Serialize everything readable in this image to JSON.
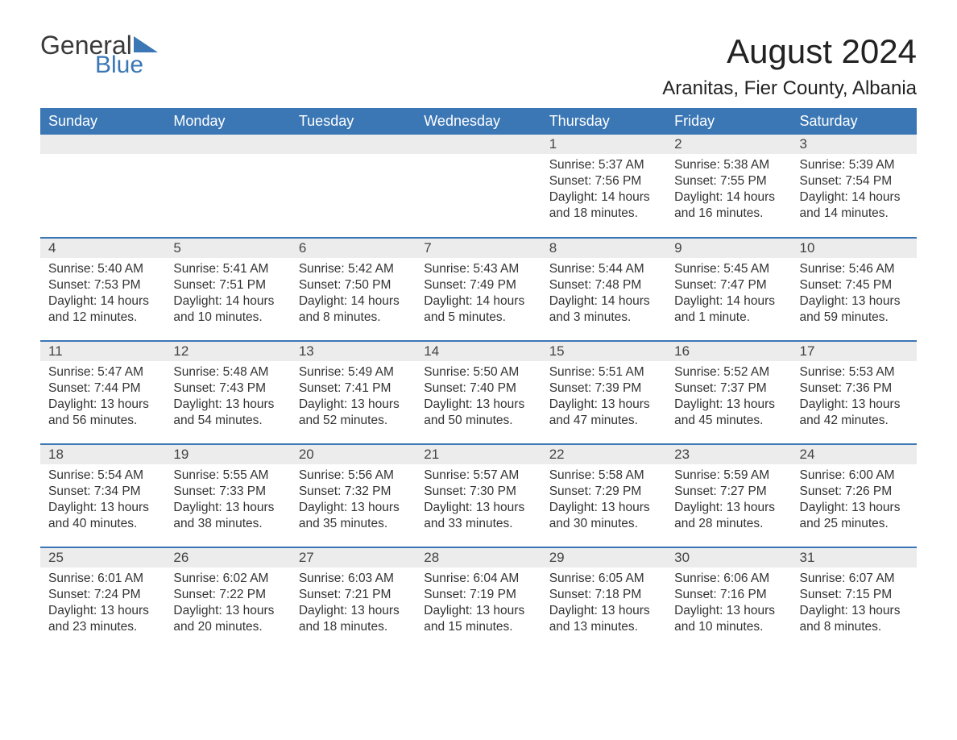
{
  "logo": {
    "text1": "General",
    "text2": "Blue",
    "tri_color": "#3b77b5"
  },
  "title": "August 2024",
  "location": "Aranitas, Fier County, Albania",
  "colors": {
    "header_bg": "#3b77b5",
    "header_text": "#ffffff",
    "daynum_bg": "#ececec",
    "border": "#3b77b5",
    "body_text": "#333333",
    "background": "#ffffff"
  },
  "typography": {
    "title_fontsize": 42,
    "location_fontsize": 24,
    "header_fontsize": 18,
    "daynum_fontsize": 17,
    "data_fontsize": 15.5
  },
  "weekdays": [
    "Sunday",
    "Monday",
    "Tuesday",
    "Wednesday",
    "Thursday",
    "Friday",
    "Saturday"
  ],
  "weeks": [
    [
      null,
      null,
      null,
      null,
      {
        "n": "1",
        "sunrise": "Sunrise: 5:37 AM",
        "sunset": "Sunset: 7:56 PM",
        "daylight": "Daylight: 14 hours and 18 minutes."
      },
      {
        "n": "2",
        "sunrise": "Sunrise: 5:38 AM",
        "sunset": "Sunset: 7:55 PM",
        "daylight": "Daylight: 14 hours and 16 minutes."
      },
      {
        "n": "3",
        "sunrise": "Sunrise: 5:39 AM",
        "sunset": "Sunset: 7:54 PM",
        "daylight": "Daylight: 14 hours and 14 minutes."
      }
    ],
    [
      {
        "n": "4",
        "sunrise": "Sunrise: 5:40 AM",
        "sunset": "Sunset: 7:53 PM",
        "daylight": "Daylight: 14 hours and 12 minutes."
      },
      {
        "n": "5",
        "sunrise": "Sunrise: 5:41 AM",
        "sunset": "Sunset: 7:51 PM",
        "daylight": "Daylight: 14 hours and 10 minutes."
      },
      {
        "n": "6",
        "sunrise": "Sunrise: 5:42 AM",
        "sunset": "Sunset: 7:50 PM",
        "daylight": "Daylight: 14 hours and 8 minutes."
      },
      {
        "n": "7",
        "sunrise": "Sunrise: 5:43 AM",
        "sunset": "Sunset: 7:49 PM",
        "daylight": "Daylight: 14 hours and 5 minutes."
      },
      {
        "n": "8",
        "sunrise": "Sunrise: 5:44 AM",
        "sunset": "Sunset: 7:48 PM",
        "daylight": "Daylight: 14 hours and 3 minutes."
      },
      {
        "n": "9",
        "sunrise": "Sunrise: 5:45 AM",
        "sunset": "Sunset: 7:47 PM",
        "daylight": "Daylight: 14 hours and 1 minute."
      },
      {
        "n": "10",
        "sunrise": "Sunrise: 5:46 AM",
        "sunset": "Sunset: 7:45 PM",
        "daylight": "Daylight: 13 hours and 59 minutes."
      }
    ],
    [
      {
        "n": "11",
        "sunrise": "Sunrise: 5:47 AM",
        "sunset": "Sunset: 7:44 PM",
        "daylight": "Daylight: 13 hours and 56 minutes."
      },
      {
        "n": "12",
        "sunrise": "Sunrise: 5:48 AM",
        "sunset": "Sunset: 7:43 PM",
        "daylight": "Daylight: 13 hours and 54 minutes."
      },
      {
        "n": "13",
        "sunrise": "Sunrise: 5:49 AM",
        "sunset": "Sunset: 7:41 PM",
        "daylight": "Daylight: 13 hours and 52 minutes."
      },
      {
        "n": "14",
        "sunrise": "Sunrise: 5:50 AM",
        "sunset": "Sunset: 7:40 PM",
        "daylight": "Daylight: 13 hours and 50 minutes."
      },
      {
        "n": "15",
        "sunrise": "Sunrise: 5:51 AM",
        "sunset": "Sunset: 7:39 PM",
        "daylight": "Daylight: 13 hours and 47 minutes."
      },
      {
        "n": "16",
        "sunrise": "Sunrise: 5:52 AM",
        "sunset": "Sunset: 7:37 PM",
        "daylight": "Daylight: 13 hours and 45 minutes."
      },
      {
        "n": "17",
        "sunrise": "Sunrise: 5:53 AM",
        "sunset": "Sunset: 7:36 PM",
        "daylight": "Daylight: 13 hours and 42 minutes."
      }
    ],
    [
      {
        "n": "18",
        "sunrise": "Sunrise: 5:54 AM",
        "sunset": "Sunset: 7:34 PM",
        "daylight": "Daylight: 13 hours and 40 minutes."
      },
      {
        "n": "19",
        "sunrise": "Sunrise: 5:55 AM",
        "sunset": "Sunset: 7:33 PM",
        "daylight": "Daylight: 13 hours and 38 minutes."
      },
      {
        "n": "20",
        "sunrise": "Sunrise: 5:56 AM",
        "sunset": "Sunset: 7:32 PM",
        "daylight": "Daylight: 13 hours and 35 minutes."
      },
      {
        "n": "21",
        "sunrise": "Sunrise: 5:57 AM",
        "sunset": "Sunset: 7:30 PM",
        "daylight": "Daylight: 13 hours and 33 minutes."
      },
      {
        "n": "22",
        "sunrise": "Sunrise: 5:58 AM",
        "sunset": "Sunset: 7:29 PM",
        "daylight": "Daylight: 13 hours and 30 minutes."
      },
      {
        "n": "23",
        "sunrise": "Sunrise: 5:59 AM",
        "sunset": "Sunset: 7:27 PM",
        "daylight": "Daylight: 13 hours and 28 minutes."
      },
      {
        "n": "24",
        "sunrise": "Sunrise: 6:00 AM",
        "sunset": "Sunset: 7:26 PM",
        "daylight": "Daylight: 13 hours and 25 minutes."
      }
    ],
    [
      {
        "n": "25",
        "sunrise": "Sunrise: 6:01 AM",
        "sunset": "Sunset: 7:24 PM",
        "daylight": "Daylight: 13 hours and 23 minutes."
      },
      {
        "n": "26",
        "sunrise": "Sunrise: 6:02 AM",
        "sunset": "Sunset: 7:22 PM",
        "daylight": "Daylight: 13 hours and 20 minutes."
      },
      {
        "n": "27",
        "sunrise": "Sunrise: 6:03 AM",
        "sunset": "Sunset: 7:21 PM",
        "daylight": "Daylight: 13 hours and 18 minutes."
      },
      {
        "n": "28",
        "sunrise": "Sunrise: 6:04 AM",
        "sunset": "Sunset: 7:19 PM",
        "daylight": "Daylight: 13 hours and 15 minutes."
      },
      {
        "n": "29",
        "sunrise": "Sunrise: 6:05 AM",
        "sunset": "Sunset: 7:18 PM",
        "daylight": "Daylight: 13 hours and 13 minutes."
      },
      {
        "n": "30",
        "sunrise": "Sunrise: 6:06 AM",
        "sunset": "Sunset: 7:16 PM",
        "daylight": "Daylight: 13 hours and 10 minutes."
      },
      {
        "n": "31",
        "sunrise": "Sunrise: 6:07 AM",
        "sunset": "Sunset: 7:15 PM",
        "daylight": "Daylight: 13 hours and 8 minutes."
      }
    ]
  ]
}
